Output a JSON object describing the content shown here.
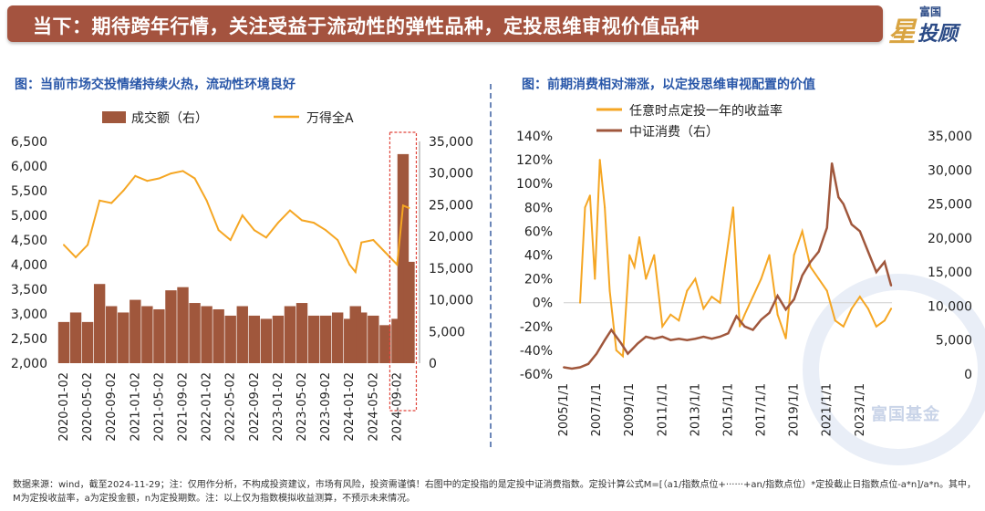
{
  "banner": {
    "title": "当下：期待跨年行情，关注受益于流动性的弹性品种，定投思维审视价值品种"
  },
  "logo": {
    "top": "富国",
    "star": "星",
    "main": "投顾"
  },
  "left_subtitle": "图：当前市场交投情绪持续火热，流动性环境良好",
  "right_subtitle": "图：前期消费相对滞涨，以定投思维审视配置的价值",
  "watermark": "富国基金",
  "footnote": "数据来源：wind，截至2024-11-29；注：仅用作分析，不构成投资建议，市场有风险，投资需谨慎！右图中的定投指的是定投中证消费指数。定投计算公式M=[（a1/指数点位+······+an/指数点位）*定投截止日指数点位-a*n]/a*n。其中，M为定投收益率，a为定投金额，n为定投期数。注：以上仅为指数模拟收益测算，不预示未来情况。",
  "colors": {
    "banner": "#a4533f",
    "orange": "#f5a623",
    "brown": "#a0573c",
    "subtitle": "#2856a8",
    "highlight_box": "#e0443a"
  },
  "chart_data": [
    {
      "type": "line+bar",
      "title": "",
      "legend": [
        "成交额（右）",
        "万得全A"
      ],
      "legend_position": "top",
      "x_tick_labels": [
        "2020-01-02",
        "2020-05-02",
        "2020-09-02",
        "2021-01-02",
        "2021-05-02",
        "2021-09-02",
        "2022-01-02",
        "2022-05-02",
        "2022-09-02",
        "2023-01-02",
        "2023-05-02",
        "2023-09-02",
        "2024-01-02",
        "2024-05-02",
        "2024-09-02"
      ],
      "y_left_ticks": [
        "6,500",
        "6,000",
        "5,500",
        "5,000",
        "4,500",
        "4,000",
        "3,500",
        "3,000",
        "2,500",
        "2,000"
      ],
      "y_right_ticks": [
        "35,000",
        "30,000",
        "25,000",
        "20,000",
        "15,000",
        "10,000",
        "5,000",
        "0"
      ],
      "ylim_left": [
        2000,
        6500
      ],
      "ylim_right": [
        0,
        35000
      ],
      "highlight": "2024-09 to 2024-11 (red dashed box)",
      "series": [
        {
          "name": "万得全A",
          "axis": "left",
          "x": [
            "2020-01",
            "2020-03",
            "2020-05",
            "2020-07",
            "2020-09",
            "2020-11",
            "2021-01",
            "2021-03",
            "2021-05",
            "2021-07",
            "2021-09",
            "2021-11",
            "2022-01",
            "2022-03",
            "2022-05",
            "2022-07",
            "2022-09",
            "2022-11",
            "2023-01",
            "2023-03",
            "2023-05",
            "2023-07",
            "2023-09",
            "2023-11",
            "2024-01",
            "2024-02",
            "2024-03",
            "2024-05",
            "2024-07",
            "2024-09",
            "2024-10",
            "2024-11"
          ],
          "values": [
            4400,
            4150,
            4400,
            5300,
            5250,
            5500,
            5800,
            5700,
            5750,
            5850,
            5900,
            5750,
            5300,
            4700,
            4500,
            5000,
            4700,
            4550,
            4850,
            5100,
            4900,
            4850,
            4700,
            4500,
            4000,
            3850,
            4450,
            4500,
            4250,
            4000,
            5200,
            5150
          ]
        },
        {
          "name": "成交额（右）",
          "axis": "right",
          "x": [
            "2020-01",
            "2020-03",
            "2020-05",
            "2020-07",
            "2020-09",
            "2020-11",
            "2021-01",
            "2021-03",
            "2021-05",
            "2021-07",
            "2021-09",
            "2021-11",
            "2022-01",
            "2022-03",
            "2022-05",
            "2022-07",
            "2022-09",
            "2022-11",
            "2023-01",
            "2023-03",
            "2023-05",
            "2023-07",
            "2023-09",
            "2023-11",
            "2024-01",
            "2024-02",
            "2024-03",
            "2024-05",
            "2024-07",
            "2024-09",
            "2024-10",
            "2024-11"
          ],
          "values": [
            6500,
            8000,
            6500,
            12500,
            9000,
            8000,
            10000,
            9000,
            8500,
            11500,
            12000,
            9500,
            9000,
            8500,
            7500,
            9000,
            7500,
            7000,
            7500,
            9000,
            9500,
            7500,
            7500,
            8000,
            7000,
            9000,
            8000,
            7500,
            6000,
            7000,
            33000,
            16000
          ]
        }
      ]
    },
    {
      "type": "line",
      "title": "",
      "legend": [
        "任意时点定投一年的收益率",
        "中证消费（右）"
      ],
      "legend_position": "top",
      "x_tick_labels": [
        "2005/1/1",
        "2007/1/1",
        "2009/1/1",
        "2011/1/1",
        "2013/1/1",
        "2015/1/1",
        "2017/1/1",
        "2019/1/1",
        "2021/1/1",
        "2023/1/1"
      ],
      "y_left_ticks": [
        "140%",
        "120%",
        "100%",
        "80%",
        "60%",
        "40%",
        "20%",
        "0%",
        "-20%",
        "-40%",
        "-60%"
      ],
      "y_right_ticks": [
        "35,000",
        "30,000",
        "25,000",
        "20,000",
        "15,000",
        "10,000",
        "5,000",
        "0"
      ],
      "ylim_left": [
        -60,
        140
      ],
      "ylim_right": [
        0,
        35000
      ],
      "series": [
        {
          "name": "任意时点定投一年的收益率",
          "axis": "left",
          "x": [
            2006.0,
            2006.3,
            2006.6,
            2006.9,
            2007.2,
            2007.5,
            2007.8,
            2008.2,
            2008.6,
            2009.0,
            2009.3,
            2009.6,
            2010.0,
            2010.5,
            2011.0,
            2011.5,
            2012.0,
            2012.5,
            2013.0,
            2013.5,
            2014.0,
            2014.5,
            2015.0,
            2015.3,
            2015.7,
            2016.0,
            2016.5,
            2017.0,
            2017.5,
            2018.0,
            2018.5,
            2019.0,
            2019.5,
            2020.0,
            2020.5,
            2021.0,
            2021.5,
            2022.0,
            2022.5,
            2023.0,
            2023.5,
            2024.0,
            2024.5,
            2024.9
          ],
          "values": [
            0,
            80,
            90,
            20,
            120,
            80,
            10,
            -40,
            -45,
            40,
            30,
            55,
            20,
            40,
            -20,
            -10,
            -15,
            10,
            20,
            -5,
            5,
            0,
            50,
            80,
            -20,
            -10,
            5,
            20,
            40,
            -10,
            -30,
            40,
            60,
            30,
            20,
            10,
            -15,
            -20,
            -5,
            5,
            -5,
            -20,
            -15,
            -5
          ]
        },
        {
          "name": "中证消费（右）",
          "axis": "right",
          "x": [
            2005.0,
            2005.5,
            2006.0,
            2006.5,
            2007.0,
            2007.5,
            2007.9,
            2008.5,
            2008.9,
            2009.5,
            2010.0,
            2010.5,
            2011.0,
            2011.5,
            2012.0,
            2012.5,
            2013.0,
            2013.5,
            2014.0,
            2014.5,
            2015.0,
            2015.5,
            2016.0,
            2016.5,
            2017.0,
            2017.5,
            2018.0,
            2018.5,
            2019.0,
            2019.5,
            2020.0,
            2020.5,
            2021.0,
            2021.3,
            2021.7,
            2022.0,
            2022.5,
            2023.0,
            2023.5,
            2024.0,
            2024.5,
            2024.9
          ],
          "values": [
            1000,
            800,
            1000,
            1500,
            3000,
            5000,
            6500,
            4500,
            3000,
            4500,
            5500,
            5200,
            5500,
            5000,
            5200,
            5000,
            5200,
            5500,
            5200,
            5500,
            6000,
            8500,
            7000,
            6500,
            8000,
            9000,
            11500,
            9500,
            11000,
            14500,
            16500,
            18000,
            21500,
            31000,
            26000,
            25000,
            22000,
            21000,
            18000,
            15000,
            16500,
            13000
          ]
        }
      ]
    }
  ]
}
